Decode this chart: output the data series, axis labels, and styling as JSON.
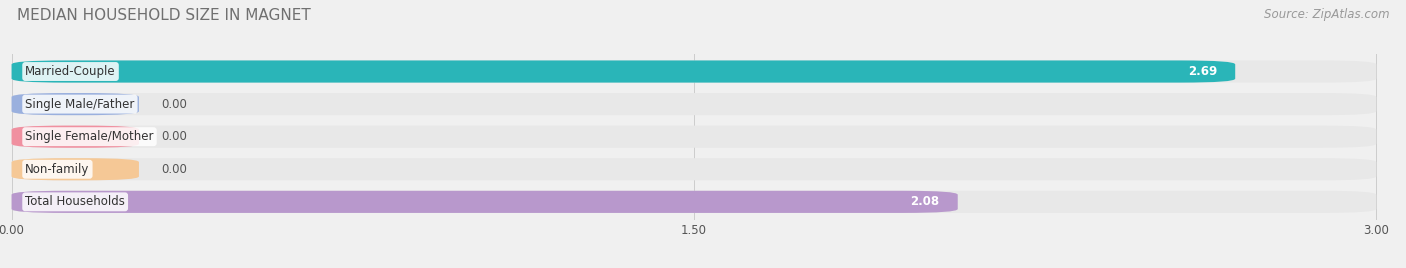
{
  "title": "MEDIAN HOUSEHOLD SIZE IN MAGNET",
  "source": "Source: ZipAtlas.com",
  "categories": [
    "Married-Couple",
    "Single Male/Father",
    "Single Female/Mother",
    "Non-family",
    "Total Households"
  ],
  "values": [
    2.69,
    0.0,
    0.0,
    0.0,
    2.08
  ],
  "bar_colors": [
    "#2ab5b8",
    "#9ab0de",
    "#f090a0",
    "#f5c896",
    "#b898cc"
  ],
  "bg_colors": [
    "#ebebeb",
    "#ebebeb",
    "#ebebeb",
    "#ebebeb",
    "#ebebeb"
  ],
  "xlim": [
    0,
    3.0
  ],
  "xticks": [
    0.0,
    1.5,
    3.0
  ],
  "xticklabels": [
    "0.00",
    "1.50",
    "3.00"
  ],
  "zero_bar_width": 0.28,
  "title_fontsize": 11,
  "source_fontsize": 8.5,
  "label_fontsize": 8.5,
  "value_fontsize": 8.5,
  "figsize": [
    14.06,
    2.68
  ],
  "dpi": 100
}
